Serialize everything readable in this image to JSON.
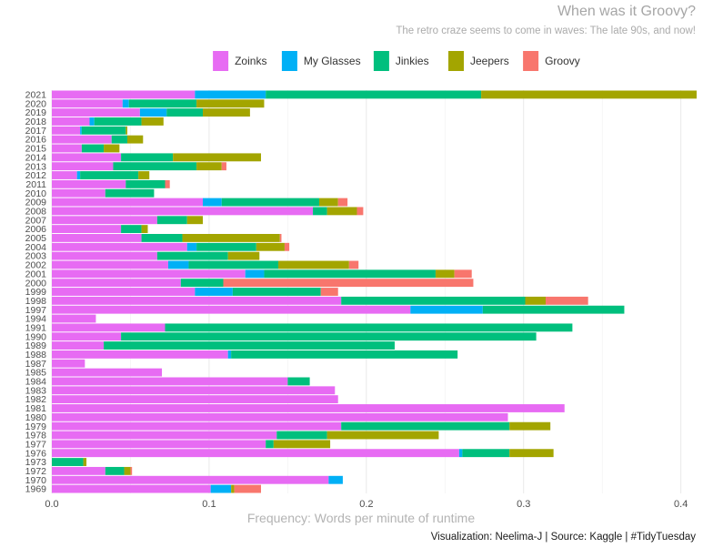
{
  "chart_data": {
    "type": "bar",
    "orientation": "horizontal",
    "stacked": true,
    "title": "When was it Groovy?",
    "subtitle": "The retro craze seems to come in waves: The late 90s, and now!",
    "xlabel": "Frequency: Words per minute of runtime",
    "ylabel": "",
    "xlim": [
      0,
      0.41
    ],
    "xticks": [
      "0.0",
      "0.1",
      "0.2",
      "0.3",
      "0.4"
    ],
    "xtick_values": [
      0,
      0.1,
      0.2,
      0.3,
      0.4
    ],
    "grid": true,
    "legend_position": "top",
    "caption": "Visualization: Neelima-J | Source: Kaggle | #TidyTuesday",
    "colors": {
      "Zoinks": "#e76bf3",
      "My Glasses": "#00b0f6",
      "Jinkies": "#00bf7d",
      "Jeepers": "#a3a500",
      "Groovy": "#f8766d"
    },
    "series_names": [
      "Zoinks",
      "My Glasses",
      "Jinkies",
      "Jeepers",
      "Groovy"
    ],
    "categories": [
      "2021",
      "2020",
      "2019",
      "2018",
      "2017",
      "2016",
      "2015",
      "2014",
      "2013",
      "2012",
      "2011",
      "2010",
      "2009",
      "2008",
      "2007",
      "2006",
      "2005",
      "2004",
      "2003",
      "2002",
      "2001",
      "2000",
      "1999",
      "1998",
      "1997",
      "1994",
      "1991",
      "1990",
      "1989",
      "1988",
      "1987",
      "1985",
      "1984",
      "1983",
      "1982",
      "1981",
      "1980",
      "1979",
      "1978",
      "1977",
      "1976",
      "1973",
      "1972",
      "1970",
      "1969"
    ],
    "series": [
      {
        "name": "Zoinks",
        "values": [
          0.091,
          0.045,
          0.056,
          0.024,
          0.018,
          0.038,
          0.019,
          0.044,
          0.039,
          0.016,
          0.047,
          0.034,
          0.096,
          0.166,
          0.067,
          0.044,
          0.057,
          0.086,
          0.067,
          0.074,
          0.123,
          0.082,
          0.091,
          0.184,
          0.228,
          0.028,
          0.072,
          0.044,
          0.033,
          0.112,
          0.021,
          0.07,
          0.15,
          0.18,
          0.182,
          0.326,
          0.29,
          0.184,
          0.143,
          0.136,
          0.259,
          0.0,
          0.034,
          0.176,
          0.101
        ]
      },
      {
        "name": "My Glasses",
        "values": [
          0.045,
          0.004,
          0.017,
          0.003,
          0.001,
          0.0,
          0.0,
          0.0,
          0.0,
          0.002,
          0.0,
          0.0,
          0.012,
          0.0,
          0.0,
          0.0,
          0.0,
          0.006,
          0.0,
          0.013,
          0.012,
          0.0,
          0.024,
          0.0,
          0.046,
          0.0,
          0.0,
          0.0,
          0.0,
          0.002,
          0.0,
          0.0,
          0.0,
          0.0,
          0.0,
          0.0,
          0.0,
          0.0,
          0.0,
          0.0,
          0.002,
          0.0,
          0.0,
          0.009,
          0.013
        ]
      },
      {
        "name": "Jinkies",
        "values": [
          0.137,
          0.043,
          0.023,
          0.03,
          0.028,
          0.01,
          0.014,
          0.033,
          0.053,
          0.037,
          0.025,
          0.031,
          0.062,
          0.009,
          0.019,
          0.013,
          0.026,
          0.038,
          0.045,
          0.057,
          0.109,
          0.027,
          0.056,
          0.117,
          0.09,
          0.0,
          0.259,
          0.264,
          0.185,
          0.144,
          0.0,
          0.0,
          0.014,
          0.0,
          0.0,
          0.0,
          0.0,
          0.107,
          0.032,
          0.005,
          0.03,
          0.02,
          0.012,
          0.0,
          0.0
        ]
      },
      {
        "name": "Jeepers",
        "values": [
          0.137,
          0.043,
          0.03,
          0.014,
          0.001,
          0.01,
          0.01,
          0.056,
          0.016,
          0.007,
          0.0,
          0.0,
          0.012,
          0.019,
          0.01,
          0.004,
          0.062,
          0.018,
          0.02,
          0.045,
          0.012,
          0.0,
          0.0,
          0.013,
          0.0,
          0.0,
          0.0,
          0.0,
          0.0,
          0.0,
          0.0,
          0.0,
          0.0,
          0.0,
          0.0,
          0.0,
          0.0,
          0.026,
          0.071,
          0.036,
          0.028,
          0.002,
          0.004,
          0.0,
          0.002
        ]
      },
      {
        "name": "Groovy",
        "values": [
          0.0,
          0.0,
          0.0,
          0.0,
          0.0,
          0.0,
          0.0,
          0.0,
          0.003,
          0.0,
          0.003,
          0.0,
          0.006,
          0.004,
          0.0,
          0.0,
          0.001,
          0.003,
          0.0,
          0.006,
          0.011,
          0.159,
          0.011,
          0.027,
          0.0,
          0.0,
          0.0,
          0.0,
          0.0,
          0.0,
          0.0,
          0.0,
          0.0,
          0.0,
          0.0,
          0.0,
          0.0,
          0.0,
          0.0,
          0.0,
          0.0,
          0.0,
          0.001,
          0.0,
          0.017
        ]
      }
    ]
  }
}
